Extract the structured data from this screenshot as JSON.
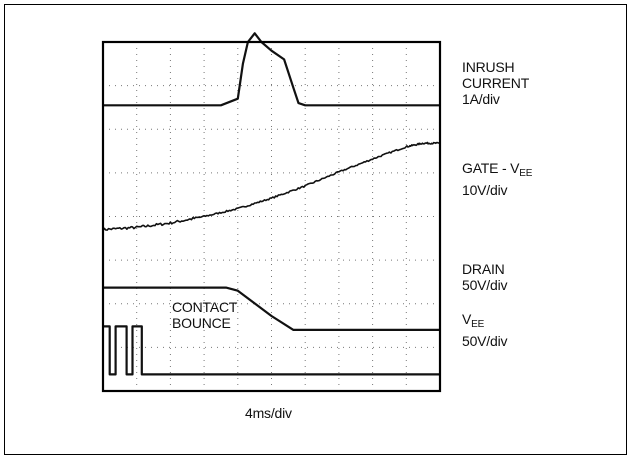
{
  "chart_data": {
    "type": "line",
    "title": "",
    "xlabel": "4ms/div",
    "ylabel": "",
    "grid": true,
    "grid_style": "dotted",
    "x_divisions": 10,
    "y_divisions": 8,
    "xlim": [
      0,
      40
    ],
    "x_unit": "ms",
    "series": [
      {
        "name": "INRUSH CURRENT",
        "scale": "1A/div",
        "baseline_div": 6.55,
        "x": [
          0,
          14,
          16,
          16.6,
          17.2,
          18,
          18.8,
          20,
          21.5,
          22.6,
          23.2,
          24,
          40
        ],
        "y_div": [
          0,
          0,
          0.15,
          0.95,
          1.45,
          1.65,
          1.45,
          1.25,
          1.05,
          0.4,
          0.05,
          0,
          0
        ]
      },
      {
        "name": "GATE - VEE",
        "scale": "10V/div",
        "baseline_div": 3.7,
        "x": [
          0,
          4,
          8,
          12,
          16,
          20,
          24,
          28,
          32,
          36,
          38,
          40
        ],
        "y_div": [
          0,
          0.05,
          0.15,
          0.3,
          0.48,
          0.72,
          1.0,
          1.32,
          1.62,
          1.9,
          1.98,
          1.98
        ]
      },
      {
        "name": "DRAIN",
        "scale": "50V/div",
        "baseline_div": 1.4,
        "x": [
          0,
          14.6,
          16,
          20,
          22.6,
          40
        ],
        "y_div": [
          0.97,
          0.97,
          0.9,
          0.32,
          0,
          0
        ]
      },
      {
        "name": "VEE",
        "scale": "50V/div",
        "baseline_div": 0.38,
        "x": [
          0,
          0.8,
          0.8,
          1.5,
          1.5,
          2.8,
          2.8,
          3.5,
          3.5,
          4.6,
          4.6,
          5.3,
          5.3,
          40
        ],
        "y_div": [
          1.1,
          1.1,
          0,
          0,
          1.1,
          1.1,
          0,
          0,
          1.1,
          1.1,
          0,
          0,
          0,
          0
        ]
      }
    ],
    "annotations": [
      {
        "text": "CONTACT BOUNCE",
        "lines": [
          "CONTACT",
          "BOUNCE"
        ]
      }
    ]
  },
  "labels": {
    "inrush": {
      "line1": "INRUSH",
      "line2": "CURRENT",
      "scale": "1A/div"
    },
    "gate": {
      "main": "GATE - V",
      "sub": "EE",
      "scale": "10V/div"
    },
    "drain": {
      "line1": "DRAIN",
      "scale": "50V/div"
    },
    "vee": {
      "main": "V",
      "sub": "EE",
      "scale": "50V/div"
    },
    "contact": {
      "line1": "CONTACT",
      "line2": "BOUNCE"
    },
    "timebase": "4ms/div"
  }
}
